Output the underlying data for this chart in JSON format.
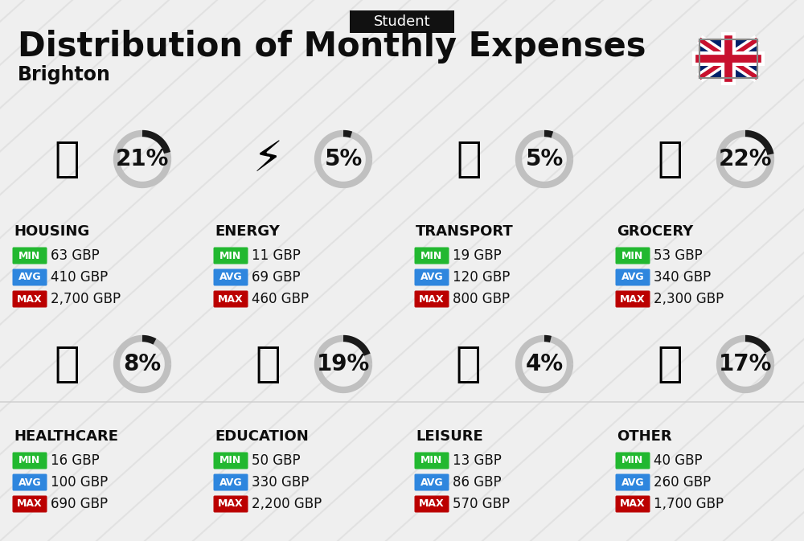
{
  "title": "Distribution of Monthly Expenses",
  "subtitle": "Brighton",
  "header_label": "Student",
  "bg_color": "#efefef",
  "categories": [
    {
      "name": "HOUSING",
      "percent": 21,
      "min_val": "63 GBP",
      "avg_val": "410 GBP",
      "max_val": "2,700 GBP",
      "row": 0,
      "col": 0
    },
    {
      "name": "ENERGY",
      "percent": 5,
      "min_val": "11 GBP",
      "avg_val": "69 GBP",
      "max_val": "460 GBP",
      "row": 0,
      "col": 1
    },
    {
      "name": "TRANSPORT",
      "percent": 5,
      "min_val": "19 GBP",
      "avg_val": "120 GBP",
      "max_val": "800 GBP",
      "row": 0,
      "col": 2
    },
    {
      "name": "GROCERY",
      "percent": 22,
      "min_val": "53 GBP",
      "avg_val": "340 GBP",
      "max_val": "2,300 GBP",
      "row": 0,
      "col": 3
    },
    {
      "name": "HEALTHCARE",
      "percent": 8,
      "min_val": "16 GBP",
      "avg_val": "100 GBP",
      "max_val": "690 GBP",
      "row": 1,
      "col": 0
    },
    {
      "name": "EDUCATION",
      "percent": 19,
      "min_val": "50 GBP",
      "avg_val": "330 GBP",
      "max_val": "2,200 GBP",
      "row": 1,
      "col": 1
    },
    {
      "name": "LEISURE",
      "percent": 4,
      "min_val": "13 GBP",
      "avg_val": "86 GBP",
      "max_val": "570 GBP",
      "row": 1,
      "col": 2
    },
    {
      "name": "OTHER",
      "percent": 17,
      "min_val": "40 GBP",
      "avg_val": "260 GBP",
      "max_val": "1,700 GBP",
      "row": 1,
      "col": 3
    }
  ],
  "min_color": "#22b830",
  "avg_color": "#2e86de",
  "max_color": "#bb0000",
  "circle_dark": "#1a1a1a",
  "circle_light": "#c0c0c0",
  "title_fontsize": 30,
  "subtitle_fontsize": 17,
  "header_fontsize": 13,
  "cat_fontsize": 13,
  "val_fontsize": 12,
  "pct_fontsize": 20,
  "badge_fontsize": 9,
  "flag_blue": "#012169",
  "flag_red": "#C8102E",
  "stripe_color": "#d5d5d5"
}
